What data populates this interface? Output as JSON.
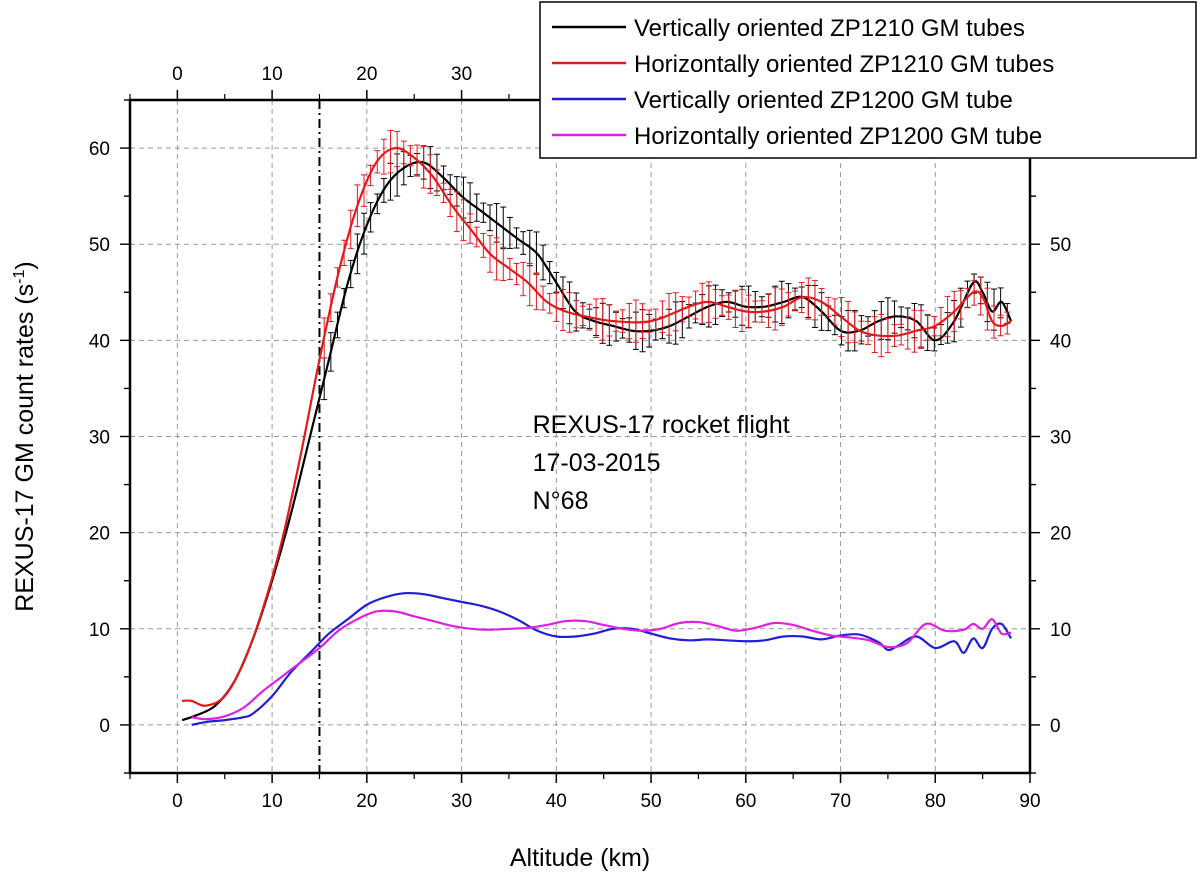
{
  "chart_data": {
    "type": "line",
    "xlabel": "Altitude (km)",
    "ylabel": "REXUS-17 GM count rates (s",
    "ylabel_superscript": "-1",
    "ylabel_close": ")",
    "xlim": [
      -5,
      90
    ],
    "ylim": [
      -5,
      65
    ],
    "x_ticks": [
      0,
      10,
      20,
      30,
      40,
      50,
      60,
      70,
      80,
      90
    ],
    "x_ticks_top": [
      0,
      10,
      20,
      30
    ],
    "y_ticks": [
      0,
      10,
      20,
      30,
      40,
      50,
      60
    ],
    "y_ticks_right": [
      0,
      10,
      20,
      30,
      40,
      50
    ],
    "grid": true,
    "legend_position": "top-right",
    "reference_line_x": 15,
    "annotation": [
      "REXUS-17 rocket flight",
      "17-03-2015",
      "N°68"
    ],
    "series": [
      {
        "name": "Vertically oriented ZP1210 GM tubes",
        "color": "#000000",
        "error_bars": true,
        "points": [
          [
            0.5,
            0.5
          ],
          [
            2,
            1
          ],
          [
            4,
            2
          ],
          [
            6,
            4.5
          ],
          [
            8,
            9
          ],
          [
            10,
            15
          ],
          [
            12,
            22
          ],
          [
            14,
            30
          ],
          [
            16,
            38
          ],
          [
            18,
            46
          ],
          [
            20,
            52
          ],
          [
            22,
            56
          ],
          [
            24,
            58
          ],
          [
            26,
            58.5
          ],
          [
            28,
            57
          ],
          [
            30,
            55
          ],
          [
            32,
            53.5
          ],
          [
            34,
            52
          ],
          [
            36,
            50.5
          ],
          [
            38,
            49
          ],
          [
            40,
            46
          ],
          [
            42,
            43
          ],
          [
            44,
            42
          ],
          [
            46,
            41.5
          ],
          [
            48,
            41
          ],
          [
            50,
            41
          ],
          [
            52,
            41.5
          ],
          [
            54,
            42.5
          ],
          [
            56,
            43.5
          ],
          [
            58,
            44
          ],
          [
            60,
            43.5
          ],
          [
            62,
            43.5
          ],
          [
            64,
            44
          ],
          [
            66,
            44.5
          ],
          [
            68,
            43
          ],
          [
            70,
            41
          ],
          [
            72,
            41
          ],
          [
            74,
            42
          ],
          [
            76,
            42.5
          ],
          [
            78,
            42
          ],
          [
            80,
            40
          ],
          [
            82,
            42
          ],
          [
            84,
            46
          ],
          [
            85,
            45
          ],
          [
            86,
            43
          ],
          [
            87,
            44
          ],
          [
            88,
            42
          ]
        ]
      },
      {
        "name": "Horizontally oriented ZP1210 GM tubes",
        "color": "#e31a1c",
        "error_bars": true,
        "points": [
          [
            0.5,
            2.5
          ],
          [
            1.5,
            2.5
          ],
          [
            3,
            2
          ],
          [
            5,
            3
          ],
          [
            7,
            6.5
          ],
          [
            9,
            12
          ],
          [
            11,
            19
          ],
          [
            13,
            28
          ],
          [
            15,
            38
          ],
          [
            17,
            47
          ],
          [
            19,
            54
          ],
          [
            21,
            58.5
          ],
          [
            23,
            60
          ],
          [
            25,
            59
          ],
          [
            27,
            57
          ],
          [
            29,
            54
          ],
          [
            31,
            51.5
          ],
          [
            33,
            49
          ],
          [
            35,
            47.5
          ],
          [
            37,
            46
          ],
          [
            39,
            44
          ],
          [
            41,
            43
          ],
          [
            43,
            42.5
          ],
          [
            46,
            42
          ],
          [
            50,
            42
          ],
          [
            54,
            43.5
          ],
          [
            56,
            44
          ],
          [
            58,
            43.5
          ],
          [
            60,
            43
          ],
          [
            62,
            43
          ],
          [
            64,
            43.5
          ],
          [
            66,
            44.5
          ],
          [
            68,
            44
          ],
          [
            70,
            42.5
          ],
          [
            72,
            41
          ],
          [
            74,
            40.5
          ],
          [
            76,
            40.5
          ],
          [
            78,
            41
          ],
          [
            80,
            41.5
          ],
          [
            82,
            43
          ],
          [
            84,
            45
          ],
          [
            85,
            44.5
          ],
          [
            86,
            42
          ],
          [
            87,
            41.5
          ],
          [
            88,
            42
          ]
        ]
      },
      {
        "name": "Vertically oriented ZP1200 GM tube",
        "color": "#1f1fd6",
        "error_bars": false,
        "points": [
          [
            1.5,
            0
          ],
          [
            3,
            0.3
          ],
          [
            5,
            0.5
          ],
          [
            7,
            0.8
          ],
          [
            8,
            1.2
          ],
          [
            10,
            3
          ],
          [
            12,
            5.5
          ],
          [
            14,
            7.5
          ],
          [
            16,
            9.5
          ],
          [
            18,
            11
          ],
          [
            20,
            12.5
          ],
          [
            22,
            13.3
          ],
          [
            24,
            13.7
          ],
          [
            26,
            13.6
          ],
          [
            28,
            13.2
          ],
          [
            30,
            12.8
          ],
          [
            32,
            12.4
          ],
          [
            34,
            11.8
          ],
          [
            36,
            10.9
          ],
          [
            38,
            9.8
          ],
          [
            40,
            9.2
          ],
          [
            42,
            9.2
          ],
          [
            44,
            9.5
          ],
          [
            46,
            10
          ],
          [
            48,
            10
          ],
          [
            50,
            9.5
          ],
          [
            52,
            9
          ],
          [
            54,
            8.8
          ],
          [
            56,
            8.9
          ],
          [
            58,
            8.8
          ],
          [
            60,
            8.7
          ],
          [
            62,
            8.8
          ],
          [
            64,
            9.2
          ],
          [
            66,
            9.2
          ],
          [
            68,
            8.9
          ],
          [
            70,
            9.3
          ],
          [
            72,
            9.4
          ],
          [
            74,
            8.6
          ],
          [
            75,
            7.8
          ],
          [
            76,
            8.2
          ],
          [
            78,
            9.2
          ],
          [
            80,
            8
          ],
          [
            82,
            8.7
          ],
          [
            83,
            7.5
          ],
          [
            84,
            9
          ],
          [
            85,
            8
          ],
          [
            86,
            10
          ],
          [
            87,
            10.5
          ],
          [
            88,
            9
          ]
        ]
      },
      {
        "name": "Horizontally oriented ZP1200 GM tube",
        "color": "#e020e0",
        "error_bars": false,
        "points": [
          [
            1.5,
            0.8
          ],
          [
            3,
            0.6
          ],
          [
            5,
            0.9
          ],
          [
            7,
            1.8
          ],
          [
            9,
            3.5
          ],
          [
            11,
            5
          ],
          [
            13,
            6.5
          ],
          [
            15,
            8
          ],
          [
            17,
            9.8
          ],
          [
            19,
            11
          ],
          [
            21,
            11.8
          ],
          [
            23,
            11.8
          ],
          [
            25,
            11.3
          ],
          [
            27,
            10.8
          ],
          [
            29,
            10.3
          ],
          [
            31,
            10
          ],
          [
            33,
            9.9
          ],
          [
            35,
            10
          ],
          [
            37,
            10.1
          ],
          [
            39,
            10.4
          ],
          [
            41,
            10.8
          ],
          [
            43,
            10.8
          ],
          [
            45,
            10.4
          ],
          [
            47,
            10
          ],
          [
            49,
            9.8
          ],
          [
            51,
            10
          ],
          [
            53,
            10.6
          ],
          [
            55,
            10.7
          ],
          [
            57,
            10.3
          ],
          [
            59,
            9.8
          ],
          [
            61,
            10.1
          ],
          [
            63,
            10.6
          ],
          [
            65,
            10.4
          ],
          [
            67,
            9.8
          ],
          [
            69,
            9.3
          ],
          [
            71,
            9.1
          ],
          [
            73,
            8.8
          ],
          [
            75,
            8.1
          ],
          [
            77,
            8.5
          ],
          [
            79,
            10.5
          ],
          [
            81,
            9.8
          ],
          [
            83,
            9.9
          ],
          [
            84,
            10.5
          ],
          [
            85,
            10
          ],
          [
            86,
            11
          ],
          [
            87,
            9.5
          ],
          [
            88,
            9.6
          ]
        ]
      }
    ]
  }
}
